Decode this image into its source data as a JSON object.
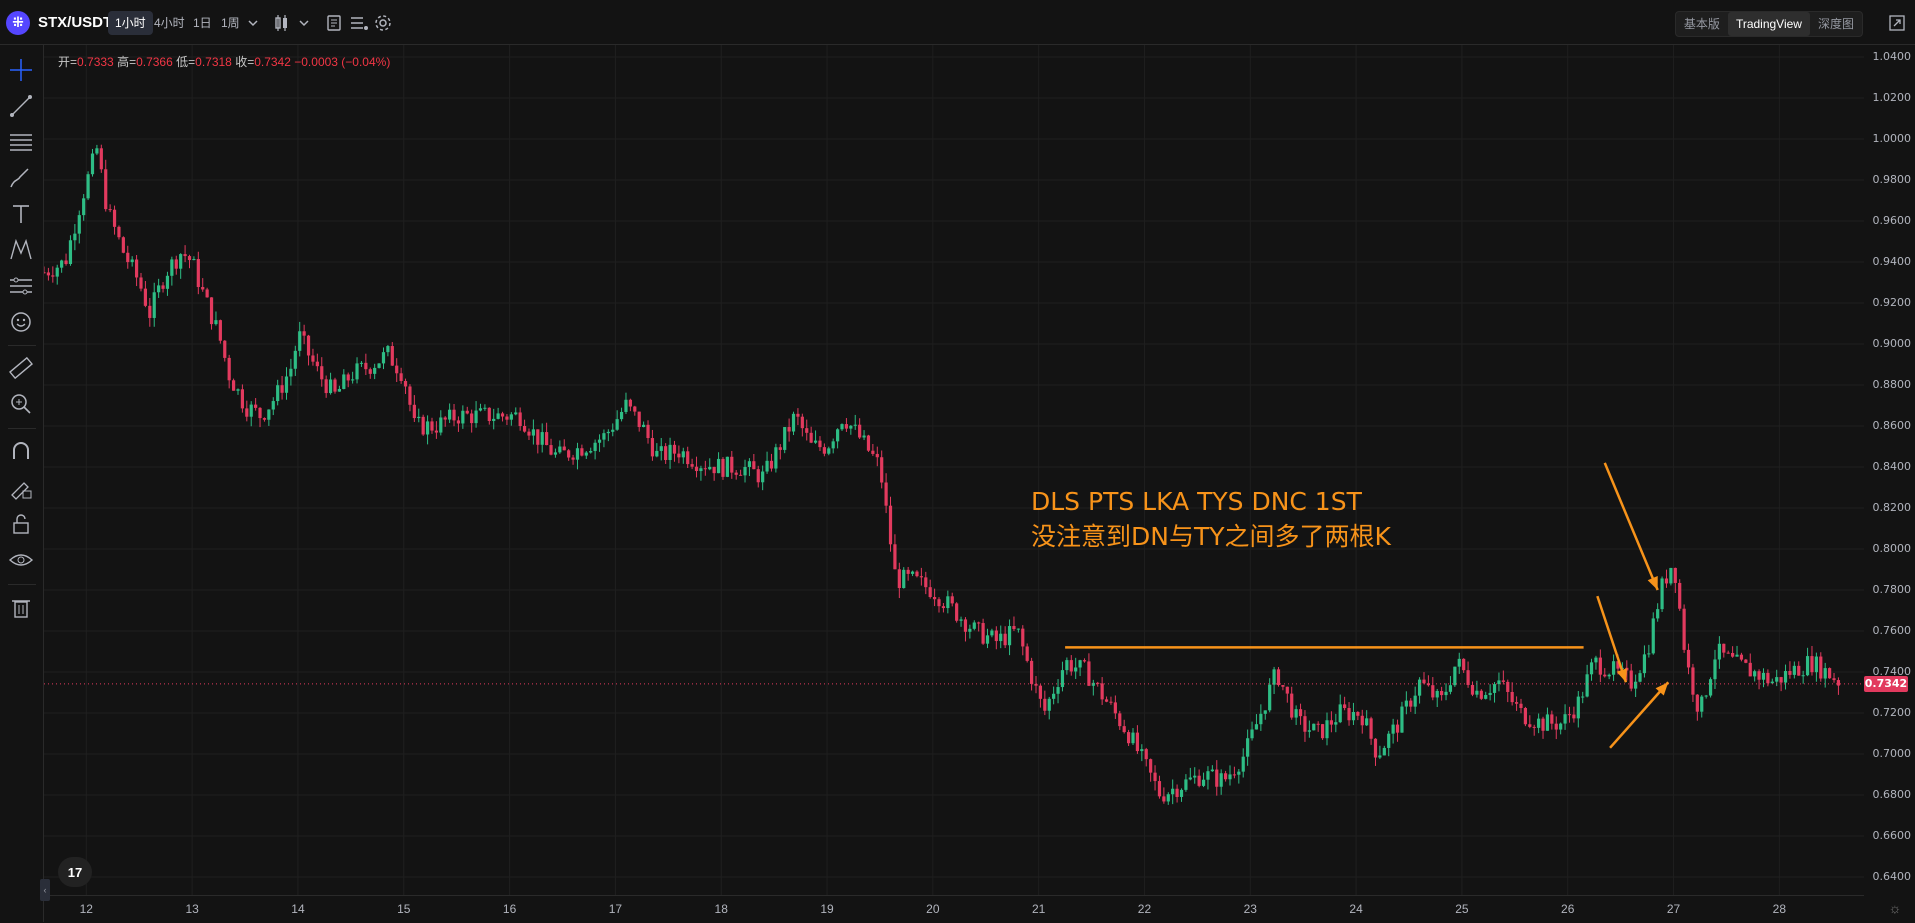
{
  "header": {
    "symbol": "STX/USDT",
    "logo_glyph": "⁜",
    "intervals": [
      {
        "label": "1小时",
        "active": true
      },
      {
        "label": "4小时",
        "active": false
      },
      {
        "label": "1日",
        "active": false
      },
      {
        "label": "1周",
        "active": false
      }
    ],
    "views": [
      {
        "label": "基本版",
        "active": false
      },
      {
        "label": "TradingView",
        "active": true
      },
      {
        "label": "深度图",
        "active": false
      }
    ]
  },
  "toolbar_icons": [
    "crosshair-icon",
    "trend-line-icon",
    "fib-lines-icon",
    "brush-icon",
    "text-icon",
    "pattern-icon",
    "forecast-icon",
    "emoji-icon",
    "ruler-icon",
    "zoom-in-icon",
    "magnet-icon",
    "lock-drawing-icon",
    "unlock-icon",
    "eye-icon",
    "trash-icon"
  ],
  "ohlc": {
    "open_label": "开=",
    "open": "0.7333",
    "high_label": "高=",
    "high": "0.7366",
    "low_label": "低=",
    "low": "0.7318",
    "close_label": "收=",
    "close": "0.7342",
    "change": "−0.0003 (−0.04%)"
  },
  "annotation": {
    "line1": "DLS PTS LKA TYS DNC 1ST",
    "line2": "没注意到DN与TY之间多了两根K"
  },
  "last_price": "0.7342",
  "tv_logo": "17",
  "colors": {
    "up": "#26a69a",
    "up_bright": "#2ebd85",
    "down": "#e23a5e",
    "annotation": "#f7931a",
    "background": "#131313"
  },
  "chart_data": {
    "type": "candlestick",
    "symbol": "STX/USDT",
    "interval": "1小时",
    "y_ticks": [
      "1.0400",
      "1.0200",
      "1.0000",
      "0.9800",
      "0.9600",
      "0.9400",
      "0.9200",
      "0.9000",
      "0.8800",
      "0.8600",
      "0.8400",
      "0.8200",
      "0.8000",
      "0.7800",
      "0.7600",
      "0.7400",
      "0.7200",
      "0.7000",
      "0.6800",
      "0.6600",
      "0.6400"
    ],
    "ylim": [
      0.64,
      1.04
    ],
    "x_ticks": [
      "12",
      "13",
      "14",
      "15",
      "16",
      "17",
      "18",
      "19",
      "20",
      "21",
      "22",
      "23",
      "24",
      "25",
      "26",
      "27",
      "28"
    ],
    "xlim": [
      11.6,
      28.8
    ],
    "path": [
      [
        11.6,
        0.935
      ],
      [
        11.8,
        0.94
      ],
      [
        11.95,
        0.97
      ],
      [
        12.1,
        0.995
      ],
      [
        12.2,
        0.965
      ],
      [
        12.35,
        0.945
      ],
      [
        12.5,
        0.93
      ],
      [
        12.6,
        0.915
      ],
      [
        12.75,
        0.935
      ],
      [
        12.9,
        0.945
      ],
      [
        13.0,
        0.94
      ],
      [
        13.1,
        0.925
      ],
      [
        13.25,
        0.905
      ],
      [
        13.35,
        0.885
      ],
      [
        13.5,
        0.87
      ],
      [
        13.65,
        0.865
      ],
      [
        13.8,
        0.875
      ],
      [
        13.95,
        0.89
      ],
      [
        14.0,
        0.905
      ],
      [
        14.2,
        0.885
      ],
      [
        14.35,
        0.875
      ],
      [
        14.5,
        0.885
      ],
      [
        14.7,
        0.89
      ],
      [
        14.85,
        0.895
      ],
      [
        15.0,
        0.885
      ],
      [
        15.1,
        0.86
      ],
      [
        15.3,
        0.86
      ],
      [
        15.5,
        0.865
      ],
      [
        15.7,
        0.865
      ],
      [
        15.9,
        0.865
      ],
      [
        16.1,
        0.865
      ],
      [
        16.25,
        0.855
      ],
      [
        16.45,
        0.845
      ],
      [
        16.7,
        0.85
      ],
      [
        16.9,
        0.855
      ],
      [
        17.1,
        0.87
      ],
      [
        17.25,
        0.86
      ],
      [
        17.4,
        0.845
      ],
      [
        17.6,
        0.848
      ],
      [
        17.8,
        0.842
      ],
      [
        18.0,
        0.84
      ],
      [
        18.2,
        0.84
      ],
      [
        18.4,
        0.835
      ],
      [
        18.55,
        0.85
      ],
      [
        18.7,
        0.865
      ],
      [
        18.85,
        0.85
      ],
      [
        19.0,
        0.85
      ],
      [
        19.15,
        0.865
      ],
      [
        19.3,
        0.855
      ],
      [
        19.5,
        0.84
      ],
      [
        19.65,
        0.785
      ],
      [
        19.8,
        0.785
      ],
      [
        20.0,
        0.78
      ],
      [
        20.2,
        0.77
      ],
      [
        20.4,
        0.76
      ],
      [
        20.6,
        0.755
      ],
      [
        20.8,
        0.76
      ],
      [
        20.95,
        0.735
      ],
      [
        21.05,
        0.72
      ],
      [
        21.25,
        0.745
      ],
      [
        21.45,
        0.74
      ],
      [
        21.65,
        0.725
      ],
      [
        21.85,
        0.71
      ],
      [
        22.0,
        0.695
      ],
      [
        22.15,
        0.68
      ],
      [
        22.35,
        0.685
      ],
      [
        22.55,
        0.69
      ],
      [
        22.75,
        0.687
      ],
      [
        22.95,
        0.7
      ],
      [
        23.1,
        0.72
      ],
      [
        23.25,
        0.74
      ],
      [
        23.45,
        0.715
      ],
      [
        23.65,
        0.71
      ],
      [
        23.85,
        0.72
      ],
      [
        24.05,
        0.72
      ],
      [
        24.2,
        0.7
      ],
      [
        24.4,
        0.715
      ],
      [
        24.6,
        0.735
      ],
      [
        24.8,
        0.725
      ],
      [
        24.95,
        0.745
      ],
      [
        25.15,
        0.73
      ],
      [
        25.35,
        0.735
      ],
      [
        25.55,
        0.72
      ],
      [
        25.75,
        0.715
      ],
      [
        25.95,
        0.715
      ],
      [
        26.1,
        0.725
      ],
      [
        26.25,
        0.745
      ],
      [
        26.45,
        0.74
      ],
      [
        26.6,
        0.735
      ],
      [
        26.75,
        0.75
      ],
      [
        26.88,
        0.78
      ],
      [
        27.0,
        0.795
      ],
      [
        27.12,
        0.745
      ],
      [
        27.25,
        0.72
      ],
      [
        27.4,
        0.75
      ],
      [
        27.55,
        0.745
      ],
      [
        27.75,
        0.74
      ],
      [
        27.95,
        0.735
      ],
      [
        28.1,
        0.74
      ],
      [
        28.3,
        0.745
      ],
      [
        28.5,
        0.738
      ],
      [
        28.6,
        0.734
      ]
    ],
    "last_price": 0.7342,
    "horizontal_line": {
      "price": 0.752,
      "from": 21.25,
      "to": 26.15
    },
    "arrows": [
      {
        "from": [
          26.35,
          0.842
        ],
        "to": [
          26.85,
          0.78
        ]
      },
      {
        "from": [
          26.28,
          0.777
        ],
        "to": [
          26.55,
          0.735
        ]
      },
      {
        "from": [
          26.4,
          0.703
        ],
        "to": [
          26.95,
          0.735
        ]
      }
    ]
  }
}
